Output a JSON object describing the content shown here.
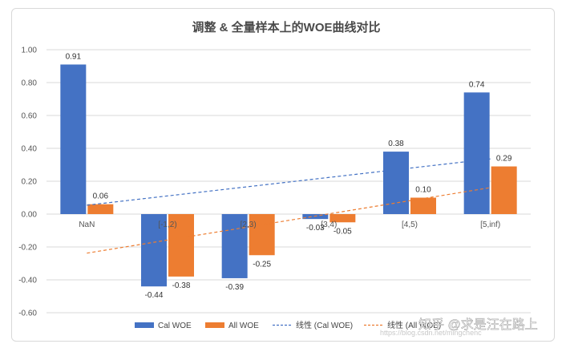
{
  "chart_data": {
    "type": "bar",
    "title": "调整 & 全量样本上的WOE曲线对比",
    "categories": [
      "NaN",
      "[-1,2)",
      "[2,3)",
      "[3,4)",
      "[4,5)",
      "[5,inf)"
    ],
    "series": [
      {
        "name": "Cal WOE",
        "values": [
          0.91,
          -0.44,
          -0.39,
          -0.03,
          0.38,
          0.74
        ],
        "color": "#4472c4"
      },
      {
        "name": "All WOE",
        "values": [
          0.06,
          -0.38,
          -0.25,
          -0.05,
          0.1,
          0.29
        ],
        "color": "#ed7d31"
      }
    ],
    "value_labels": [
      [
        "0.91",
        "-0.44",
        "-0.39",
        "-0.03",
        "0.38",
        "0.74"
      ],
      [
        "0.06",
        "-0.38",
        "-0.25",
        "-0.05",
        "0.10",
        "0.29"
      ]
    ],
    "trendlines": [
      {
        "name": "线性 (Cal WOE)",
        "series": "Cal WOE",
        "type": "linear",
        "color": "#4472c4"
      },
      {
        "name": "线性 (All WOE)",
        "series": "All WOE",
        "type": "linear",
        "color": "#ed7d31"
      }
    ],
    "yticks": [
      "1.00",
      "0.80",
      "0.60",
      "0.40",
      "0.20",
      "0.00",
      "-0.20",
      "-0.40",
      "-0.60"
    ],
    "ylim": [
      -0.6,
      1.0
    ],
    "grid": true,
    "legend_position": "bottom"
  },
  "watermark": {
    "text": "知乎 @求是汪在路上",
    "url": "https://blog.csdn.net/mingchenc"
  }
}
